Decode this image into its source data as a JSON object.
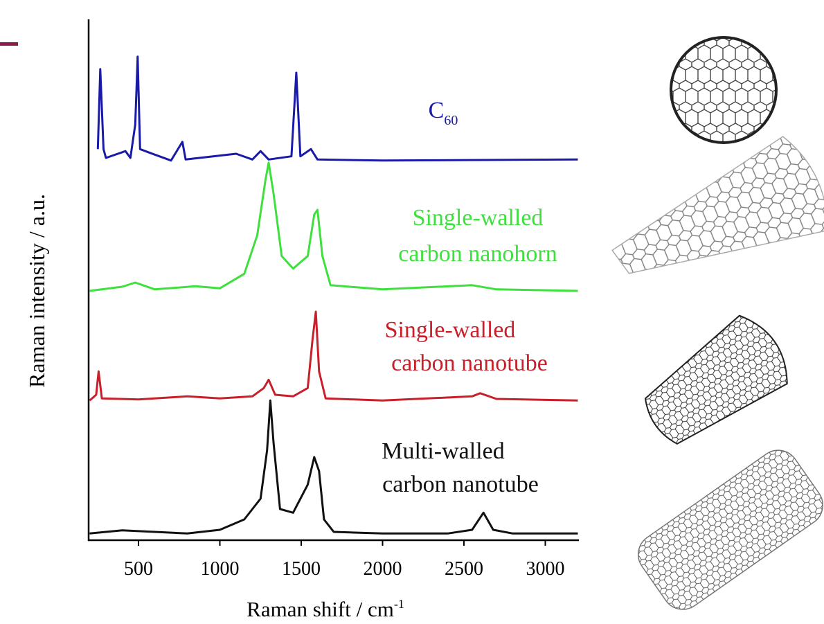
{
  "chart_data": {
    "type": "line",
    "xlabel": "Raman shift / cm",
    "xlabel_sup": "-1",
    "ylabel": "Raman intensity / a.u.",
    "xlim": [
      200,
      3200
    ],
    "xticks": [
      500,
      1000,
      1500,
      2000,
      2500,
      3000
    ],
    "ylim": [
      0,
      100
    ],
    "series": [
      {
        "label": [
          "Multi-walled",
          "carbon nanotube"
        ],
        "color": "#111111",
        "x": [
          200,
          400,
          600,
          800,
          1000,
          1150,
          1250,
          1290,
          1310,
          1330,
          1370,
          1450,
          1540,
          1580,
          1610,
          1640,
          1700,
          2000,
          2400,
          2550,
          2620,
          2680,
          2800,
          3200
        ],
        "values": [
          1.3,
          1.9,
          1.6,
          1.3,
          2.0,
          4.0,
          8.0,
          17.3,
          26.9,
          18.7,
          6.0,
          5.3,
          10.7,
          16.0,
          13.3,
          4.0,
          1.6,
          1.3,
          1.3,
          2.0,
          5.3,
          2.0,
          1.3,
          1.3
        ]
      },
      {
        "label": [
          "Single-walled",
          "carbon nanotube"
        ],
        "color": "#c8202a",
        "x": [
          200,
          240,
          255,
          275,
          500,
          800,
          1000,
          1200,
          1270,
          1300,
          1340,
          1450,
          1540,
          1570,
          1590,
          1610,
          1650,
          2000,
          2550,
          2600,
          2700,
          3200
        ],
        "values": [
          26.9,
          28.0,
          32.5,
          27.3,
          27.1,
          27.7,
          27.3,
          27.7,
          29.3,
          30.9,
          28.0,
          27.7,
          29.3,
          38.7,
          44.0,
          32.5,
          27.3,
          26.9,
          27.7,
          28.3,
          27.2,
          26.9
        ]
      },
      {
        "label": [
          "Single-walled",
          "carbon nanohorn"
        ],
        "color": "#3ee03e",
        "x": [
          200,
          400,
          480,
          600,
          850,
          1000,
          1150,
          1230,
          1280,
          1300,
          1330,
          1380,
          1450,
          1540,
          1580,
          1600,
          1630,
          1680,
          2000,
          2550,
          2700,
          3200
        ],
        "values": [
          48.0,
          48.8,
          49.6,
          48.3,
          48.9,
          48.5,
          51.3,
          58.7,
          69.3,
          72.7,
          66.7,
          54.7,
          52.3,
          54.7,
          62.7,
          63.6,
          54.7,
          49.1,
          48.3,
          49.1,
          48.3,
          48.0
        ]
      },
      {
        "label": [
          "C"
        ],
        "label_sub": "60",
        "color": "#1a1aa8",
        "x": [
          250,
          265,
          285,
          300,
          420,
          450,
          480,
          495,
          510,
          560,
          700,
          770,
          790,
          1100,
          1200,
          1250,
          1300,
          1440,
          1470,
          1495,
          1560,
          1600,
          2000,
          3200
        ],
        "values": [
          75.3,
          90.7,
          75.3,
          73.6,
          74.9,
          73.6,
          80.0,
          93.1,
          75.3,
          74.7,
          73.1,
          76.7,
          73.3,
          74.4,
          73.3,
          74.9,
          73.3,
          73.9,
          90.0,
          73.9,
          75.3,
          73.3,
          73.1,
          73.3
        ]
      }
    ]
  }
}
